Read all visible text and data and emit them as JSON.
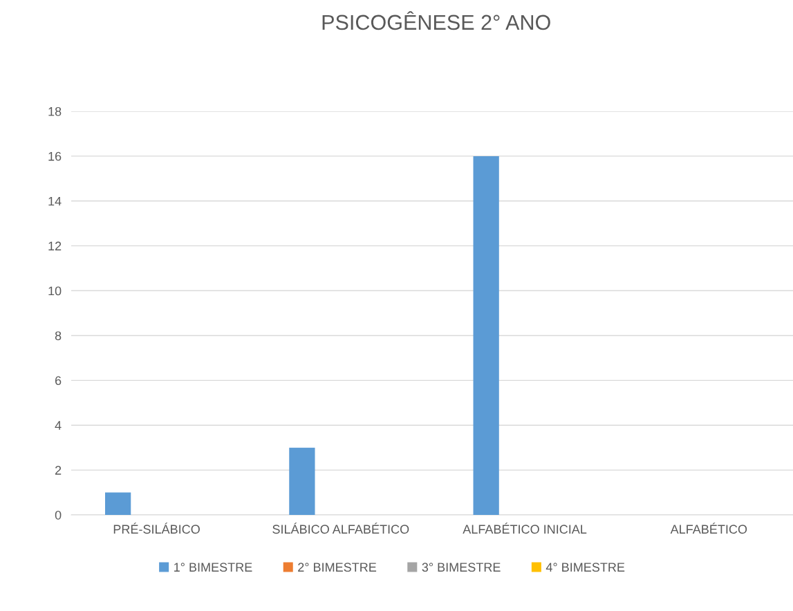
{
  "chart_data": {
    "type": "bar",
    "title": "PSICOGÊNESE 2° ANO",
    "categories": [
      "PRÉ-SILÁBICO",
      "SILÁBICO ALFABÉTICO",
      "ALFABÉTICO INICIAL",
      "ALFABÉTICO"
    ],
    "series": [
      {
        "name": "1° BIMESTRE",
        "color": "#5b9bd5",
        "values": [
          1,
          3,
          16,
          null
        ]
      },
      {
        "name": "2° BIMESTRE",
        "color": "#ed7d31",
        "values": [
          null,
          null,
          null,
          null
        ]
      },
      {
        "name": "3° BIMESTRE",
        "color": "#a5a5a5",
        "values": [
          null,
          null,
          null,
          null
        ]
      },
      {
        "name": "4° BIMESTRE",
        "color": "#ffc000",
        "values": [
          null,
          null,
          null,
          null
        ]
      }
    ],
    "ylim": [
      0,
      18
    ],
    "yticks": [
      0,
      2,
      4,
      6,
      8,
      10,
      12,
      14,
      16,
      18
    ],
    "grid": "y",
    "legend": "bottom"
  }
}
